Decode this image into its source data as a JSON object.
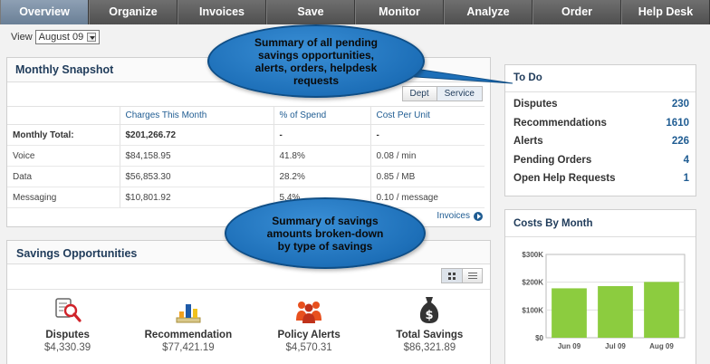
{
  "nav": {
    "items": [
      {
        "label": "Overview"
      },
      {
        "label": "Organize"
      },
      {
        "label": "Invoices"
      },
      {
        "label": "Save"
      },
      {
        "label": "Monitor"
      },
      {
        "label": "Analyze"
      },
      {
        "label": "Order"
      },
      {
        "label": "Help Desk"
      }
    ],
    "active": "Overview"
  },
  "view": {
    "label": "View",
    "selected": "August 09"
  },
  "snapshot": {
    "title": "Monthly Snapshot",
    "toggle": [
      "Dept",
      "Service"
    ],
    "columns": [
      "",
      "Charges This Month",
      "% of Spend",
      "Cost Per Unit"
    ],
    "rows": [
      [
        "Monthly Total:",
        "$201,266.72",
        "-",
        "-"
      ],
      [
        "Voice",
        "$84,158.95",
        "41.8%",
        "0.08 / min"
      ],
      [
        "Data",
        "$56,853.30",
        "28.2%",
        "0.85 / MB"
      ],
      [
        "Messaging",
        "$10,801.92",
        "5.4%",
        "0.10 / message"
      ]
    ],
    "link": "Invoices"
  },
  "savings": {
    "title": "Savings Opportunities",
    "items": [
      {
        "label": "Disputes",
        "value": "$4,330.39",
        "icon": "disputes-icon"
      },
      {
        "label": "Recommendation",
        "value": "$77,421.19",
        "icon": "recommendation-icon"
      },
      {
        "label": "Policy Alerts",
        "value": "$4,570.31",
        "icon": "policy-alerts-icon"
      },
      {
        "label": "Total Savings",
        "value": "$86,321.89",
        "icon": "money-bag-icon"
      }
    ]
  },
  "todo": {
    "title": "To Do",
    "items": [
      {
        "label": "Disputes",
        "value": "230"
      },
      {
        "label": "Recommendations",
        "value": "1610"
      },
      {
        "label": "Alerts",
        "value": "226"
      },
      {
        "label": "Pending Orders",
        "value": "4"
      },
      {
        "label": "Open Help Requests",
        "value": "1"
      }
    ]
  },
  "costs": {
    "title": "Costs By Month"
  },
  "chart_data": {
    "type": "bar",
    "categories": [
      "Jun 09",
      "Jul 09",
      "Aug 09"
    ],
    "values": [
      178000,
      186000,
      201000
    ],
    "yticks": [
      "$0",
      "$100K",
      "$200K",
      "$300K"
    ],
    "ylim": [
      0,
      300000
    ],
    "grid": true,
    "color": "#8ccc3f"
  },
  "callouts": {
    "top": [
      "Summary of all pending",
      "savings  opportunities,",
      "alerts, orders, helpdesk",
      "requests"
    ],
    "bottom": [
      "Summary of savings",
      "amounts broken-down",
      "by type of savings"
    ]
  },
  "colors": {
    "accent": "#1f5c92",
    "nav": "#5a5a5a",
    "callout": "#2a7fc9"
  }
}
